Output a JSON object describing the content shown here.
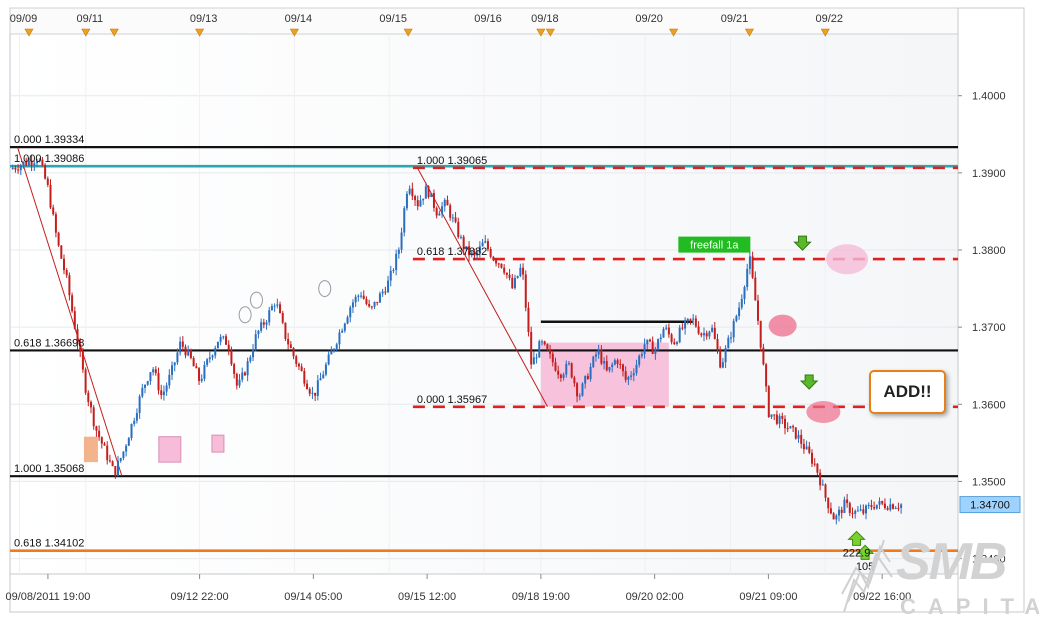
{
  "chart_data": {
    "type": "candlestick",
    "title": "",
    "ylim": [
      1.338,
      1.408
    ],
    "y_ticks": [
      "1.4000",
      "1.3900",
      "1.3800",
      "1.3700",
      "1.3600",
      "1.3500",
      "1.3400"
    ],
    "y_tick_values": [
      1.4,
      1.39,
      1.38,
      1.37,
      1.36,
      1.35,
      1.34
    ],
    "current_price": "1.34700",
    "current_price_value": 1.347,
    "top_date_ticks": [
      "09/09",
      "09/11",
      "09/13",
      "09/14",
      "09/15",
      "09/16",
      "09/18",
      "09/20",
      "09/21",
      "09/22"
    ],
    "top_date_positions": [
      0.01,
      0.08,
      0.2,
      0.3,
      0.4,
      0.5,
      0.56,
      0.67,
      0.76,
      0.86
    ],
    "bottom_time_ticks": [
      "09/08/2011 19:00",
      "09/12 22:00",
      "09/14 05:00",
      "09/15 12:00",
      "09/18 19:00",
      "09/20 02:00",
      "09/21 09:00",
      "09/22 16:00"
    ],
    "bottom_time_positions": [
      0.04,
      0.2,
      0.32,
      0.44,
      0.56,
      0.68,
      0.8,
      0.92
    ],
    "event_markers": [
      0.02,
      0.08,
      0.11,
      0.2,
      0.3,
      0.42,
      0.56,
      0.57,
      0.7,
      0.78,
      0.86
    ],
    "fib_levels": [
      {
        "label": "0.000 1.39334",
        "value": 1.39334,
        "style": "black-solid"
      },
      {
        "label": "1.000 1.39086",
        "value": 1.39086,
        "style": "teal-solid"
      },
      {
        "label": "0.618 1.36698",
        "value": 1.36698,
        "style": "black-solid"
      },
      {
        "label": "1.000 1.35068",
        "value": 1.35068,
        "style": "black-solid"
      },
      {
        "label": "0.618 1.34102",
        "value": 1.34102,
        "style": "orange-solid"
      },
      {
        "label": "1.000 1.39065",
        "value": 1.39065,
        "style": "red-dashed"
      },
      {
        "label": "0.618 1.37882",
        "value": 1.37882,
        "style": "red-dashed"
      },
      {
        "label": "0.000 1.35967",
        "value": 1.35967,
        "style": "red-dashed"
      }
    ],
    "range_box_top": 1.3707,
    "annotations": {
      "freefall_label": "freefall 1a",
      "add_label": "ADD!!",
      "target_1": "222.9",
      "target_2": "105"
    },
    "colors": {
      "bull": "#2a6fbf",
      "bear": "#c41e1e",
      "fib_dashed": "#e02020",
      "teal": "#2aa8b0",
      "orange": "#f07a20",
      "highlight_pink": "#f6bcd8",
      "price_tag": "#9fd3ff",
      "freefall_bg": "#22bb22"
    },
    "path_x": [
      0.0,
      0.03,
      0.04,
      0.05,
      0.06,
      0.07,
      0.08,
      0.09,
      0.1,
      0.11,
      0.12,
      0.13,
      0.14,
      0.15,
      0.16,
      0.17,
      0.18,
      0.19,
      0.2,
      0.21,
      0.22,
      0.23,
      0.24,
      0.25,
      0.26,
      0.27,
      0.28,
      0.29,
      0.3,
      0.31,
      0.32,
      0.33,
      0.34,
      0.35,
      0.36,
      0.37,
      0.38,
      0.39,
      0.4,
      0.41,
      0.42,
      0.43,
      0.44,
      0.45,
      0.46,
      0.47,
      0.48,
      0.49,
      0.5,
      0.51,
      0.52,
      0.53,
      0.54,
      0.55,
      0.56,
      0.57,
      0.58,
      0.59,
      0.6,
      0.61,
      0.62,
      0.63,
      0.64,
      0.65,
      0.66,
      0.67,
      0.68,
      0.69,
      0.7,
      0.71,
      0.72,
      0.73,
      0.74,
      0.75,
      0.76,
      0.77,
      0.78,
      0.79,
      0.8,
      0.81,
      0.82,
      0.83,
      0.84,
      0.85,
      0.86,
      0.87,
      0.88,
      0.89,
      0.9,
      0.91,
      0.92,
      0.93,
      0.94
    ],
    "path_y": [
      1.3905,
      1.392,
      1.388,
      1.381,
      1.376,
      1.369,
      1.362,
      1.357,
      1.354,
      1.351,
      1.354,
      1.358,
      1.362,
      1.365,
      1.361,
      1.364,
      1.368,
      1.366,
      1.363,
      1.366,
      1.3685,
      1.368,
      1.362,
      1.365,
      1.369,
      1.371,
      1.3735,
      1.369,
      1.366,
      1.3635,
      1.361,
      1.364,
      1.367,
      1.37,
      1.373,
      1.3745,
      1.372,
      1.374,
      1.376,
      1.38,
      1.389,
      1.386,
      1.388,
      1.385,
      1.386,
      1.383,
      1.38,
      1.379,
      1.381,
      1.379,
      1.378,
      1.375,
      1.378,
      1.365,
      1.368,
      1.366,
      1.364,
      1.365,
      1.361,
      1.364,
      1.367,
      1.364,
      1.366,
      1.363,
      1.365,
      1.368,
      1.367,
      1.37,
      1.368,
      1.37,
      1.371,
      1.369,
      1.37,
      1.365,
      1.369,
      1.373,
      1.379,
      1.37,
      1.359,
      1.358,
      1.357,
      1.356,
      1.354,
      1.352,
      1.348,
      1.345,
      1.347,
      1.346,
      1.346,
      1.347,
      1.347,
      1.347,
      1.347
    ],
    "grid": true,
    "legend": "none"
  },
  "icons": {
    "up_arrow": "green-up-arrow-icon",
    "down_arrow": "green-down-arrow-icon"
  },
  "logo": {
    "name": "SMB",
    "subtitle": "CAPITAL"
  }
}
